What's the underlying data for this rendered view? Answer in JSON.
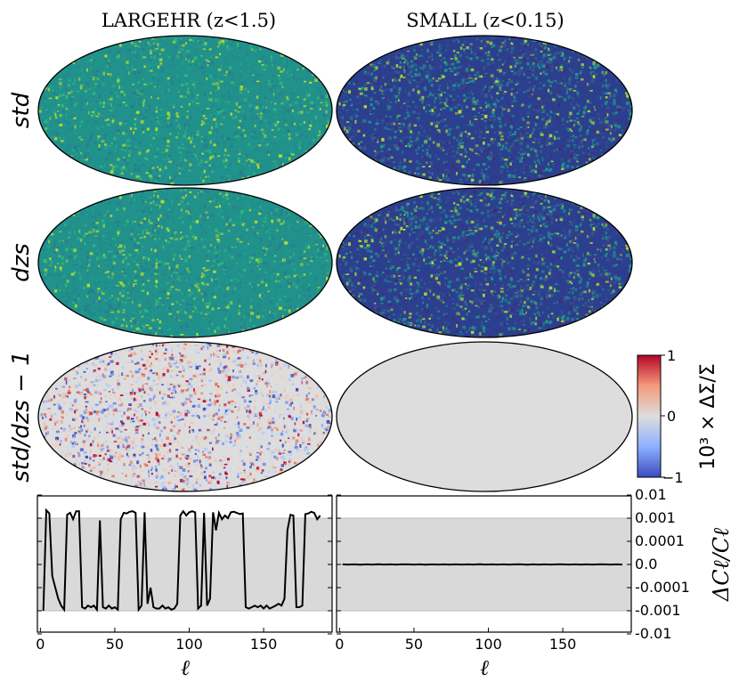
{
  "chart_data": [
    {
      "type": "heatmap",
      "projection": "mollweide",
      "columns": [
        "LARGEHR (z<1.5)",
        "SMALL (z<0.15)"
      ],
      "rows": [
        "std",
        "dzs",
        "std/dzs − 1"
      ],
      "colorbar": {
        "label": "10³ × ΔΣ/Σ",
        "ticks": [
          "1",
          "0",
          "−1"
        ],
        "range": [
          -1,
          1
        ],
        "colormap": "coolwarm",
        "colors": [
          "#3b4cc0",
          "#dddddd",
          "#b40426"
        ]
      },
      "map_colors": {
        "density_low": "#2c3f8f",
        "density_mid": "#21918c",
        "density_high": "#b5de2b",
        "difference_zero": "#dddddd"
      }
    },
    {
      "type": "line",
      "title": "LARGEHR (z<1.5)",
      "xlabel": "ℓ",
      "ylabel": "ΔCℓ/Cℓ",
      "xlim": [
        -2,
        196
      ],
      "xticks": [
        "0",
        "50",
        "100",
        "150"
      ],
      "yscale": "symlog",
      "band": [
        -0.001,
        0.001
      ],
      "band_color": "#d9d9d9",
      "series": [
        {
          "x": [
            2,
            4,
            6,
            8,
            10,
            12,
            14,
            16,
            18,
            20,
            22,
            24,
            26,
            28,
            30,
            32,
            34,
            36,
            38,
            40,
            42,
            44,
            46,
            48,
            50,
            52,
            54,
            56,
            58,
            60,
            62,
            64,
            66,
            68,
            70,
            72,
            74,
            76,
            78,
            80,
            82,
            84,
            86,
            88,
            90,
            92,
            94,
            96,
            98,
            100,
            102,
            104,
            106,
            108,
            110,
            112,
            114,
            116,
            118,
            120,
            122,
            124,
            126,
            128,
            130,
            132,
            134,
            136,
            138,
            140,
            142,
            144,
            146,
            148,
            150,
            152,
            154,
            156,
            158,
            160,
            162,
            164,
            166,
            168,
            170,
            172,
            174,
            176,
            178,
            180,
            182,
            184,
            186,
            188
          ],
          "y": [
            -0.001,
            0.0022,
            0.0016,
            -5e-05,
            -0.0001,
            -0.0003,
            -0.0006,
            -0.0009,
            0.0014,
            0.0017,
            0.0009,
            0.002,
            0.002,
            -0.0007,
            -0.0008,
            -0.0006,
            -0.0007,
            -0.0006,
            -0.0009,
            0.0008,
            -0.0007,
            -0.0008,
            -0.0006,
            -0.0008,
            -0.0007,
            -0.0009,
            0.0009,
            0.0017,
            0.0016,
            0.0019,
            0.002,
            0.0017,
            -0.0009,
            -0.0006,
            0.0018,
            -0.0005,
            -0.0001,
            -0.0007,
            -0.0008,
            -0.0008,
            -0.0006,
            -0.0008,
            -0.0007,
            -0.0009,
            -0.0008,
            -0.0005,
            0.0013,
            0.002,
            0.0013,
            0.0018,
            0.002,
            0.0018,
            -0.0008,
            -0.0006,
            0.0017,
            -0.0006,
            -0.0003,
            0.0018,
            0.0003,
            0.0017,
            0.0009,
            0.0013,
            0.001,
            0.0018,
            0.0019,
            0.0017,
            0.0015,
            0.0016,
            -0.0007,
            -0.0008,
            -0.0007,
            -0.0006,
            -0.0007,
            -0.0006,
            -0.0008,
            -0.0006,
            -0.0008,
            -0.0007,
            -0.0006,
            -0.0005,
            -0.0006,
            -0.0003,
            0.0003,
            0.0014,
            0.0013,
            -0.0007,
            -0.0007,
            -0.0006,
            0.0015,
            0.0016,
            0.0019,
            0.0017,
            0.0009,
            0.0013
          ]
        }
      ]
    },
    {
      "type": "line",
      "title": "SMALL (z<0.15)",
      "xlabel": "ℓ",
      "ylabel": "ΔCℓ/Cℓ",
      "xlim": [
        -2,
        196
      ],
      "xticks": [
        "0",
        "50",
        "100",
        "150"
      ],
      "yscale": "symlog",
      "yticks": [
        "0.01",
        "0.001",
        "0.0001",
        "0.0",
        "-0.0001",
        "-0.001",
        "-0.01"
      ],
      "band": [
        -0.001,
        0.001
      ],
      "band_color": "#d9d9d9",
      "series": [
        {
          "x": [
            2,
            6,
            10,
            14,
            18,
            22,
            26,
            30,
            34,
            38,
            42,
            46,
            50,
            54,
            58,
            62,
            66,
            70,
            74,
            78,
            82,
            86,
            90,
            94,
            98,
            102,
            106,
            110,
            114,
            118,
            122,
            126,
            130,
            134,
            138,
            142,
            146,
            150,
            154,
            158,
            162,
            166,
            170,
            174,
            178,
            182,
            186,
            190
          ],
          "y": [
            5e-07,
            -3e-07,
            2e-07,
            -6e-07,
            4e-07,
            -2e-07,
            6e-07,
            -4e-07,
            3e-07,
            -5e-07,
            2e-07,
            5e-07,
            -3e-07,
            4e-07,
            -6e-07,
            2e-07,
            -3e-07,
            5e-07,
            -2e-07,
            3e-07,
            -5e-07,
            4e-07,
            -2e-07,
            6e-07,
            -3e-07,
            2e-07,
            -4e-07,
            5e-07,
            -3e-07,
            2e-07,
            4e-07,
            -6e-07,
            3e-07,
            -2e-07,
            5e-07,
            -4e-07,
            2e-07,
            3e-07,
            -5e-07,
            4e-07,
            -2e-07,
            3e-07,
            -4e-07,
            2e-07,
            5e-07,
            -3e-07,
            2e-07,
            -4e-07
          ]
        }
      ]
    }
  ]
}
